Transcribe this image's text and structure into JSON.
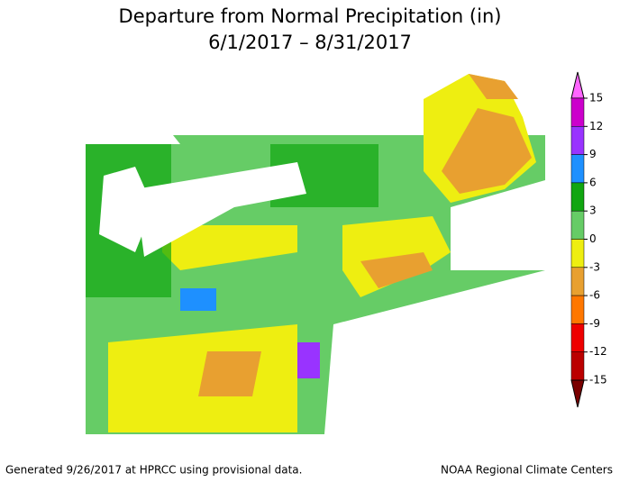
{
  "header": {
    "title": "Departure from Normal Precipitation (in)",
    "subtitle": "6/1/2017 – 8/31/2017"
  },
  "legend": {
    "ticks": [
      15,
      12,
      9,
      6,
      3,
      0,
      -3,
      -6,
      -9,
      -12,
      -15
    ],
    "colors": [
      "#ff66ff",
      "#cc00cc",
      "#9933ff",
      "#1e90ff",
      "#11a611",
      "#66cc66",
      "#eeee11",
      "#e8a030",
      "#ff7700",
      "#ee0000",
      "#bb0000",
      "#7a0000"
    ]
  },
  "footer": {
    "left": "Generated 9/26/2017 at HPRCC using provisional data.",
    "right": "NOAA Regional Climate Centers"
  }
}
